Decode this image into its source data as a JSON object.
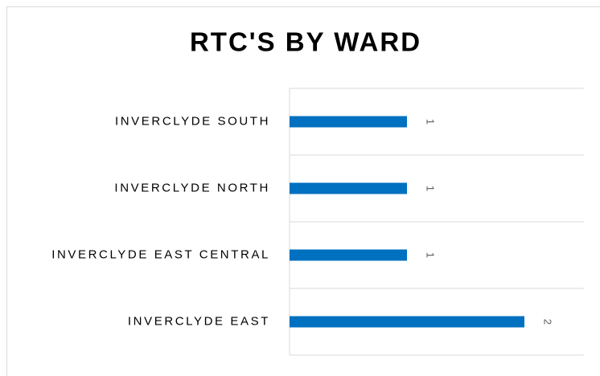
{
  "chart_data": {
    "type": "hbar",
    "title": "RTC'S BY WARD",
    "categories": [
      "INVERCLYDE SOUTH",
      "INVERCLYDE NORTH",
      "INVERCLYDE EAST CENTRAL",
      "INVERCLYDE EAST"
    ],
    "values": [
      1,
      1,
      1,
      2
    ],
    "color": "#0070c0",
    "xlim": [
      0,
      2.5
    ],
    "grid": true
  }
}
